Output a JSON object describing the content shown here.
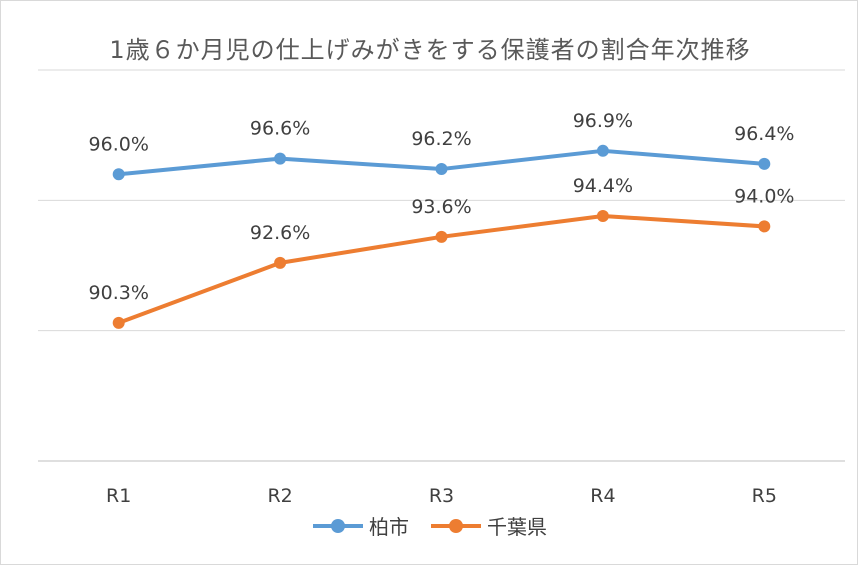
{
  "chart_data": {
    "type": "line",
    "title": "1歳６か月児の仕上げみがきをする保護者の割合年次推移",
    "categories": [
      "R1",
      "R2",
      "R3",
      "R4",
      "R5"
    ],
    "series": [
      {
        "name": "柏市",
        "color": "#5b9bd5",
        "values": [
          96.0,
          96.6,
          96.2,
          96.9,
          96.4
        ],
        "labels": [
          "96.0%",
          "96.6%",
          "96.2%",
          "96.9%",
          "96.4%"
        ]
      },
      {
        "name": "千葉県",
        "color": "#ed7d31",
        "values": [
          90.3,
          92.6,
          93.6,
          94.4,
          94.0
        ],
        "labels": [
          "90.3%",
          "92.6%",
          "93.6%",
          "94.4%",
          "94.0%"
        ]
      }
    ],
    "ylim": [
      85,
      100
    ],
    "y_gridlines": [
      85,
      90,
      95,
      100
    ],
    "y_tick_labels_shown": false,
    "grid": true,
    "legend": "bottom"
  }
}
